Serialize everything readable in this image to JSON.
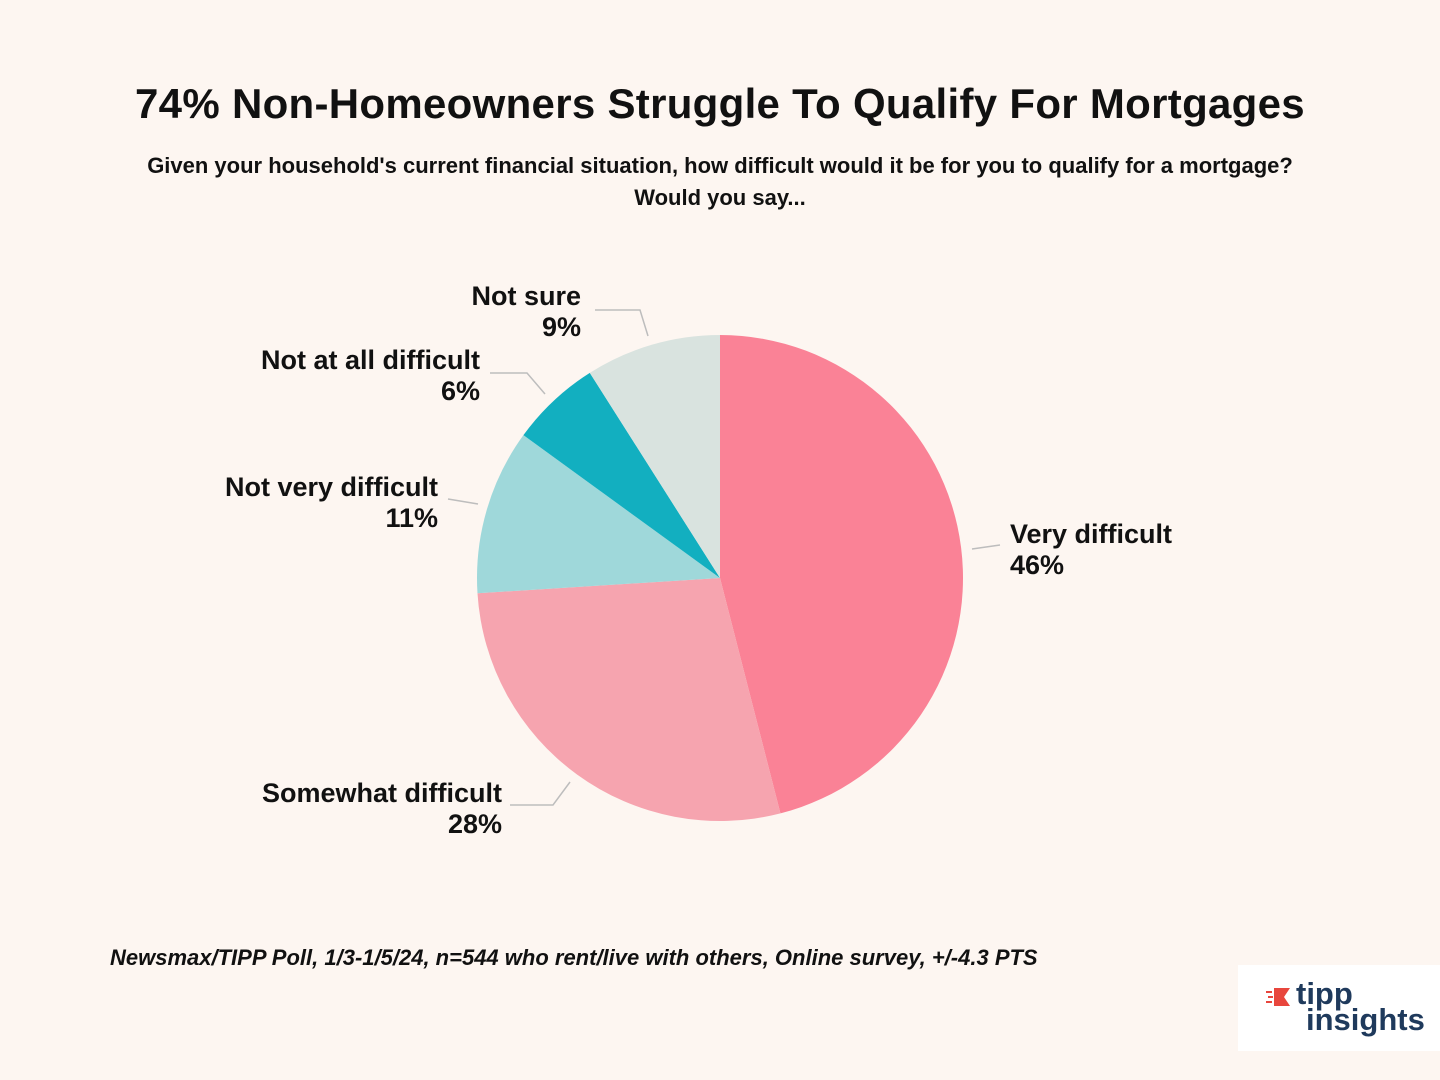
{
  "title": "74% Non-Homeowners Struggle To Qualify For Mortgages",
  "subtitle": "Given your household's current financial situation, how difficult would it be for you to qualify for a mortgage? Would you say...",
  "source": "Newsmax/TIPP Poll, 1/3-1/5/24, n=544 who rent/live with others, Online survey, +/-4.3 PTS",
  "logo": {
    "line1": "tipp",
    "line2": "insights",
    "mark_color": "#e8463d",
    "text_color": "#1f3a5c"
  },
  "chart_data": {
    "type": "pie",
    "title": "74% Non-Homeowners Struggle To Qualify For Mortgages",
    "slices": [
      {
        "label": "Very difficult",
        "value": 46,
        "value_label": "46%",
        "color": "#fa8296"
      },
      {
        "label": "Somewhat difficult",
        "value": 28,
        "value_label": "28%",
        "color": "#f6a4af"
      },
      {
        "label": "Not very difficult",
        "value": 11,
        "value_label": "11%",
        "color": "#9fd8da"
      },
      {
        "label": "Not at all difficult",
        "value": 6,
        "value_label": "6%",
        "color": "#12afc0"
      },
      {
        "label": "Not sure",
        "value": 9,
        "value_label": "9%",
        "color": "#d9e3df"
      }
    ],
    "start": "12 o'clock, clockwise",
    "legend": "none (labels beside slices)"
  }
}
